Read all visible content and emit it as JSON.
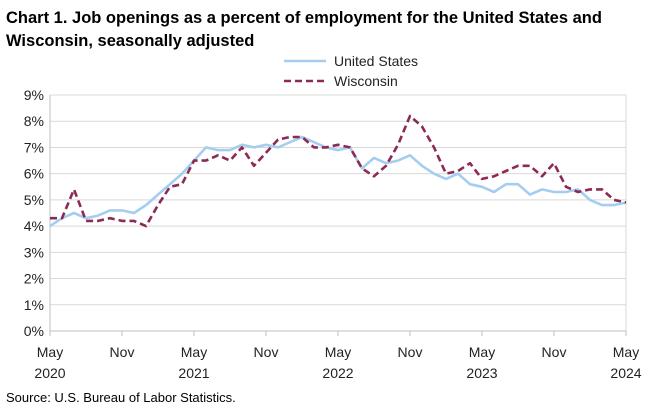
{
  "chart_data": {
    "type": "line",
    "title": "Chart 1. Job openings as a percent of employment for the United States and Wisconsin, seasonally adjusted",
    "xlabel": "",
    "ylabel": "",
    "ylim": [
      0,
      9
    ],
    "yticks": [
      "0%",
      "1%",
      "2%",
      "3%",
      "4%",
      "5%",
      "6%",
      "7%",
      "8%",
      "9%"
    ],
    "xticks": [
      {
        "month": "May",
        "year": "2020"
      },
      {
        "month": "Nov",
        "year": ""
      },
      {
        "month": "May",
        "year": "2021"
      },
      {
        "month": "Nov",
        "year": ""
      },
      {
        "month": "May",
        "year": "2022"
      },
      {
        "month": "Nov",
        "year": ""
      },
      {
        "month": "May",
        "year": "2023"
      },
      {
        "month": "Nov",
        "year": ""
      },
      {
        "month": "May",
        "year": "2024"
      }
    ],
    "x_period": "May 2020 - May 2024 (monthly)",
    "legend": {
      "placement": "top-right"
    },
    "series": [
      {
        "name": "United States",
        "color": "#a5cdf0",
        "style": "solid",
        "values": [
          4.0,
          4.3,
          4.5,
          4.3,
          4.4,
          4.6,
          4.6,
          4.5,
          4.8,
          5.2,
          5.6,
          6.0,
          6.5,
          7.0,
          6.9,
          6.9,
          7.1,
          7.0,
          7.1,
          7.0,
          7.2,
          7.4,
          7.2,
          7.0,
          6.9,
          7.0,
          6.2,
          6.6,
          6.4,
          6.5,
          6.7,
          6.3,
          6.0,
          5.8,
          6.0,
          5.6,
          5.5,
          5.3,
          5.6,
          5.6,
          5.2,
          5.4,
          5.3,
          5.3,
          5.4,
          5.0,
          4.8,
          4.8,
          4.9
        ]
      },
      {
        "name": "Wisconsin",
        "color": "#8b2a55",
        "style": "dashed",
        "values": [
          4.3,
          4.3,
          5.4,
          4.2,
          4.2,
          4.3,
          4.2,
          4.2,
          4.0,
          4.8,
          5.5,
          5.6,
          6.5,
          6.5,
          6.7,
          6.5,
          7.0,
          6.3,
          6.8,
          7.3,
          7.4,
          7.4,
          7.0,
          7.0,
          7.1,
          7.0,
          6.2,
          5.9,
          6.3,
          7.1,
          8.2,
          7.8,
          7.0,
          6.0,
          6.1,
          6.4,
          5.8,
          5.9,
          6.1,
          6.3,
          6.3,
          5.9,
          6.4,
          5.5,
          5.3,
          5.4,
          5.4,
          5.0,
          4.9
        ]
      }
    ]
  },
  "source": "Source: U.S. Bureau of Labor Statistics."
}
